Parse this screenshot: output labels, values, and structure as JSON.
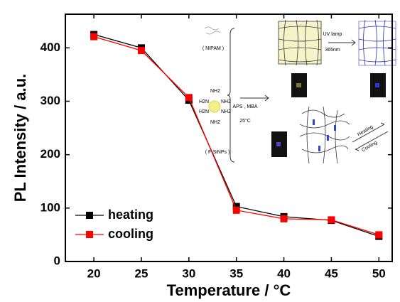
{
  "chart_data": {
    "type": "line",
    "x_label": "Temperature / °C",
    "y_label": "PL Intensity / a.u.",
    "x": [
      20,
      25,
      30,
      35,
      40,
      45,
      50
    ],
    "series": [
      {
        "name": "heating",
        "color": "#000000",
        "values": [
          425,
          400,
          302,
          103,
          84,
          77,
          47
        ]
      },
      {
        "name": "cooling",
        "color": "#ff0000",
        "values": [
          421,
          395,
          307,
          96,
          80,
          78,
          50
        ]
      }
    ],
    "xlim": [
      17,
      51.4
    ],
    "xticks": [
      20,
      25,
      30,
      35,
      40,
      45,
      50
    ],
    "ylim": [
      0,
      463
    ],
    "yticks": [
      0,
      100,
      200,
      300,
      400
    ],
    "legend": "lower left",
    "inset": {
      "labels": [
        "( NIPAM )",
        "( F-SiNPs )",
        "APS , MBA",
        "25°C",
        "UV lamp",
        "365nm",
        "Heating",
        "Cooling",
        "NH2",
        "NH2",
        "H2N",
        "NH2",
        "H2N",
        "NH2"
      ]
    }
  }
}
